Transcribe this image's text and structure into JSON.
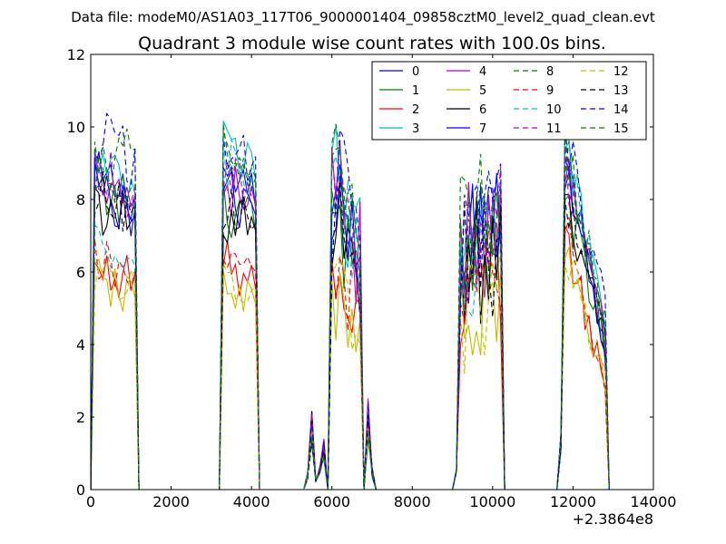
{
  "figure": {
    "suptitle": "Data file: modeM0/AS1A03_117T06_9000001404_09858cztM0_level2_quad_clean.evt"
  },
  "chart_data": {
    "type": "line",
    "title": "Quadrant 3 module wise count rates with 100.0s bins.",
    "xlabel": "",
    "ylabel": "",
    "xlim": [
      0,
      14000
    ],
    "ylim": [
      0,
      12
    ],
    "x_offset_label": "+2.3864e8",
    "xticks": [
      0,
      2000,
      4000,
      6000,
      8000,
      10000,
      12000,
      14000
    ],
    "xtick_labels": [
      "0",
      "2000",
      "4000",
      "6000",
      "8000",
      "10000",
      "12000",
      "14000"
    ],
    "yticks": [
      0,
      2,
      4,
      6,
      8,
      10,
      12
    ],
    "ytick_labels": [
      "0",
      "2",
      "4",
      "6",
      "8",
      "10",
      "12"
    ],
    "grid": false,
    "legend": {
      "placement": "upper right",
      "columns": 4
    },
    "series": [
      {
        "name": "0",
        "color": "#0000ff",
        "dashed": false
      },
      {
        "name": "1",
        "color": "#008000",
        "dashed": false
      },
      {
        "name": "2",
        "color": "#ff0000",
        "dashed": false
      },
      {
        "name": "3",
        "color": "#00bfbf",
        "dashed": false
      },
      {
        "name": "4",
        "color": "#bf00bf",
        "dashed": false
      },
      {
        "name": "5",
        "color": "#bfbf00",
        "dashed": false
      },
      {
        "name": "6",
        "color": "#000000",
        "dashed": false
      },
      {
        "name": "7",
        "color": "#0000ff",
        "dashed": false
      },
      {
        "name": "8",
        "color": "#008000",
        "dashed": true
      },
      {
        "name": "9",
        "color": "#ff0000",
        "dashed": true
      },
      {
        "name": "10",
        "color": "#00bfbf",
        "dashed": true
      },
      {
        "name": "11",
        "color": "#bf00bf",
        "dashed": true
      },
      {
        "name": "12",
        "color": "#bfbf00",
        "dashed": true
      },
      {
        "name": "13",
        "color": "#000000",
        "dashed": true
      },
      {
        "name": "14",
        "color": "#0000ff",
        "dashed": true
      },
      {
        "name": "15",
        "color": "#008000",
        "dashed": true
      }
    ],
    "bin_width_s": 100,
    "segments": [
      {
        "x": [
          100,
          1100
        ],
        "levels": [
          8.6,
          8.0,
          6.0,
          9.0,
          8.9,
          5.8,
          7.8,
          8.4,
          8.9,
          6.3,
          6.6,
          8.9,
          6.1,
          8.2,
          9.8,
          8.5
        ],
        "end": [
          8.1,
          7.7,
          5.9,
          8.1,
          8.0,
          5.2,
          7.4,
          7.6,
          9.2,
          5.9,
          6.0,
          8.1,
          5.5,
          7.6,
          9.1,
          8.1
        ]
      },
      {
        "x": [
          3300,
          4100
        ],
        "levels": [
          8.8,
          7.8,
          6.3,
          9.6,
          8.5,
          5.8,
          7.6,
          8.2,
          9.3,
          6.5,
          9.1,
          8.7,
          6.0,
          7.8,
          9.7,
          9.1
        ],
        "end": [
          7.9,
          7.2,
          5.6,
          8.6,
          7.8,
          5.1,
          7.1,
          7.5,
          8.5,
          5.9,
          8.3,
          7.9,
          5.4,
          7.1,
          8.9,
          8.3
        ]
      },
      {
        "x": [
          6000,
          6700
        ],
        "levels": [
          8.7,
          7.7,
          5.7,
          8.6,
          8.6,
          4.9,
          7.4,
          8.1,
          9.1,
          6.0,
          8.3,
          8.8,
          5.2,
          7.5,
          9.0,
          8.9
        ],
        "end": [
          6.5,
          5.6,
          4.4,
          6.9,
          6.4,
          4.0,
          6.1,
          6.2,
          7.1,
          4.8,
          6.3,
          7.0,
          4.2,
          5.8,
          7.6,
          6.9
        ]
      },
      {
        "x": [
          9200,
          10200
        ],
        "levels": [
          6.8,
          6.1,
          5.6,
          6.9,
          6.4,
          4.8,
          6.0,
          6.5,
          7.0,
          5.5,
          6.6,
          6.8,
          5.0,
          6.1,
          7.1,
          6.9
        ],
        "end": [
          7.6,
          6.9,
          5.9,
          8.1,
          7.8,
          5.2,
          6.8,
          7.3,
          8.3,
          6.1,
          7.6,
          7.9,
          5.6,
          6.9,
          8.6,
          8.0
        ]
      },
      {
        "x": [
          11800,
          12800
        ],
        "levels": [
          8.9,
          8.2,
          7.1,
          9.7,
          9.1,
          6.6,
          8.0,
          8.6,
          9.4,
          7.3,
          9.3,
          9.1,
          6.8,
          8.3,
          10.0,
          9.5
        ],
        "end": [
          4.3,
          3.9,
          2.9,
          4.6,
          4.4,
          2.9,
          3.8,
          4.1,
          4.7,
          3.1,
          4.4,
          4.5,
          2.9,
          4.0,
          4.9,
          4.6
        ]
      }
    ],
    "blips": [
      {
        "x": 5400,
        "y": 0.4
      },
      {
        "x": 5500,
        "y": 1.7
      },
      {
        "x": 5600,
        "y": 0.2
      },
      {
        "x": 5700,
        "y": 0.5
      },
      {
        "x": 5800,
        "y": 1.1
      },
      {
        "x": 6900,
        "y": 2.0
      },
      {
        "x": 7000,
        "y": 0.5
      },
      {
        "x": 9100,
        "y": 0.6
      },
      {
        "x": 11700,
        "y": 1.2
      }
    ]
  }
}
